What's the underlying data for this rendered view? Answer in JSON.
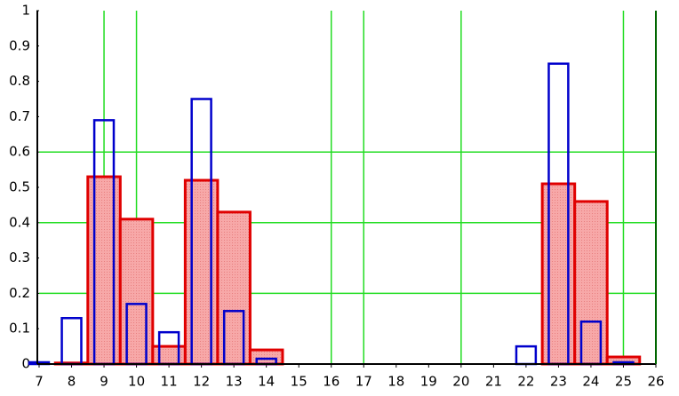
{
  "chart_data": {
    "type": "bar",
    "x": [
      7,
      8,
      9,
      10,
      11,
      12,
      13,
      14,
      15,
      16,
      17,
      18,
      19,
      20,
      21,
      22,
      23,
      24,
      25
    ],
    "series": [
      {
        "color": "#e00000",
        "values": [
          0,
          0.003,
          0.53,
          0.41,
          0.05,
          0.52,
          0.43,
          0.04,
          0,
          0,
          0,
          0,
          0,
          0,
          0,
          0,
          0.51,
          0.46,
          0.02
        ]
      },
      {
        "color": "#0000cc",
        "values": [
          0.005,
          0.13,
          0.69,
          0.17,
          0.09,
          0.75,
          0.15,
          0.015,
          0,
          0,
          0,
          0,
          0,
          0,
          0,
          0.05,
          0.85,
          0.12,
          0.005
        ]
      }
    ],
    "xlim": [
      7,
      26
    ],
    "xticks": [
      7,
      8,
      9,
      10,
      11,
      12,
      13,
      14,
      15,
      16,
      17,
      18,
      19,
      20,
      21,
      22,
      23,
      24,
      25,
      26
    ],
    "ylim": [
      0,
      1
    ],
    "yticks": [
      0,
      0.1,
      0.2,
      0.3,
      0.4,
      0.5,
      0.6,
      0.7,
      0.8,
      0.9,
      1
    ],
    "xgrid": [
      9,
      10,
      16,
      17,
      20,
      25
    ],
    "ygrid": [
      0.2,
      0.4,
      0.6
    ],
    "grid_color": "#22dd22"
  }
}
